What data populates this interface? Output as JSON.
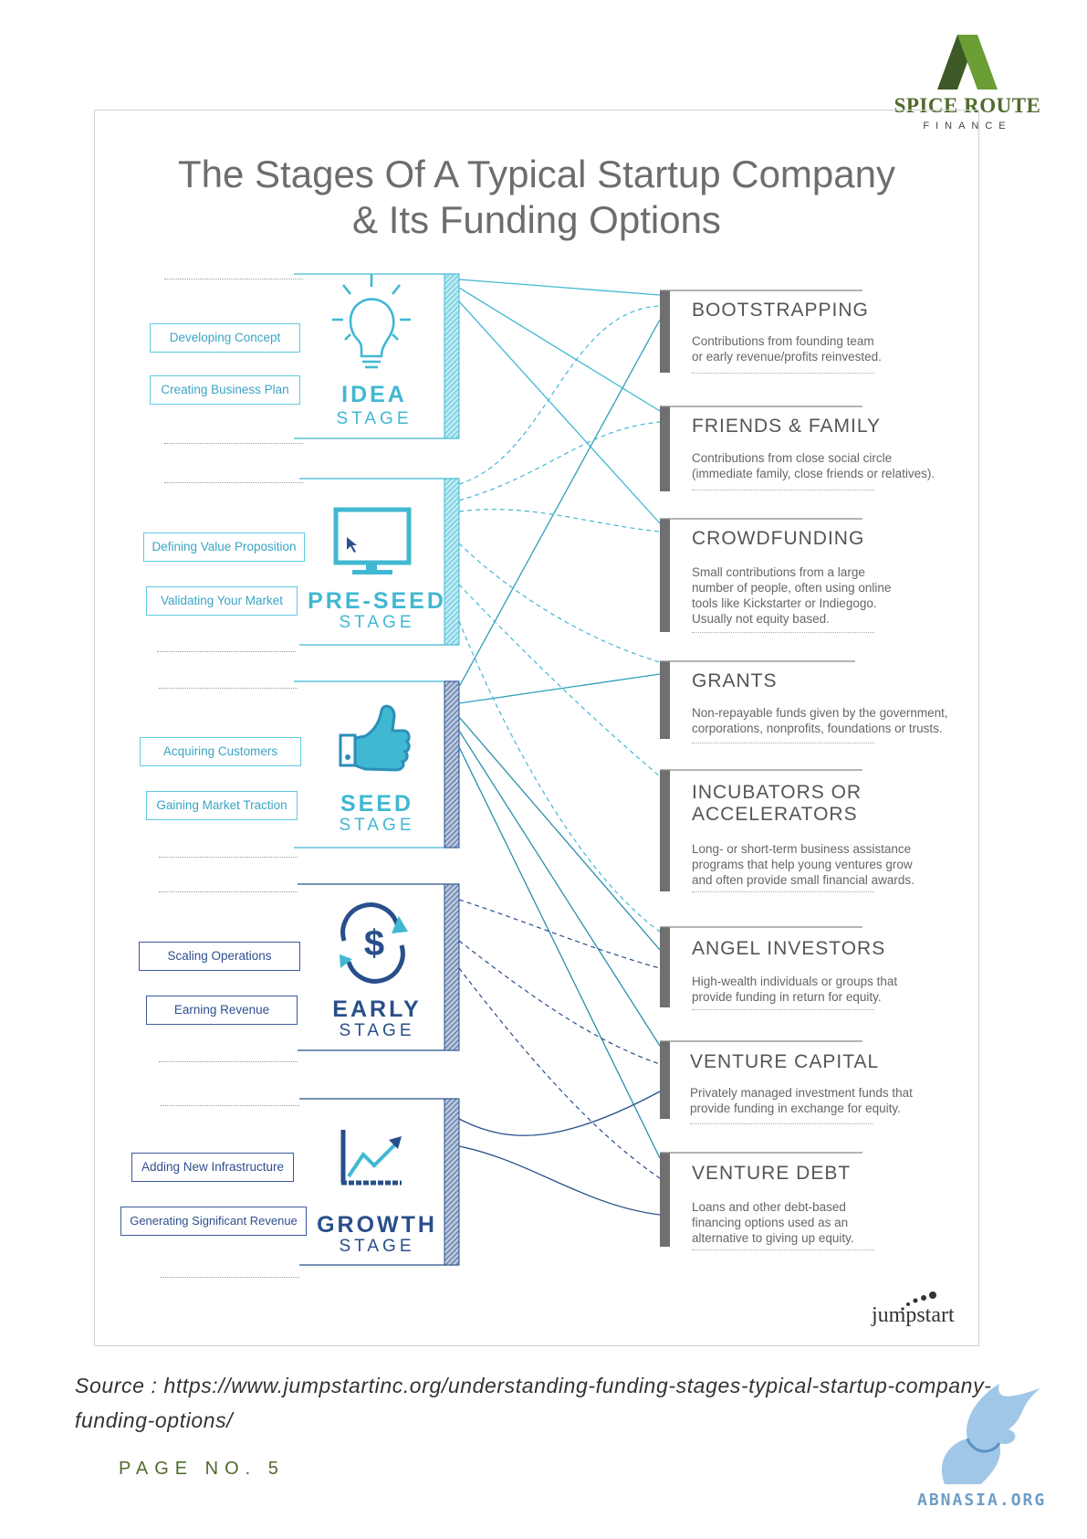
{
  "logo": {
    "name": "SPICE ROUTE",
    "sub": "FINANCE",
    "green": "#4f6b2d",
    "icon": "mountain-a-icon"
  },
  "title_line1": "The Stages Of A Typical Startup Company",
  "title_line2": "& Its Funding Options",
  "stages": [
    {
      "name": "IDEA",
      "sub": "STAGE",
      "icon": "lightbulb-icon",
      "activities": [
        "Developing Concept",
        "Creating Business Plan"
      ]
    },
    {
      "name": "PRE-SEED",
      "sub": "STAGE",
      "icon": "monitor-icon",
      "activities": [
        "Defining Value Proposition",
        "Validating Your Market"
      ]
    },
    {
      "name": "SEED",
      "sub": "STAGE",
      "icon": "thumbs-up-icon",
      "activities": [
        "Acquiring Customers",
        "Gaining Market Traction"
      ]
    },
    {
      "name": "EARLY",
      "sub": "STAGE",
      "icon": "dollar-cycle-icon",
      "activities": [
        "Scaling Operations",
        "Earning Revenue"
      ]
    },
    {
      "name": "GROWTH",
      "sub": "STAGE",
      "icon": "growth-chart-icon",
      "activities": [
        "Adding New Infrastructure",
        "Generating Significant Revenue"
      ]
    }
  ],
  "funding": [
    {
      "title": "BOOTSTRAPPING",
      "desc": "Contributions from founding team\nor early revenue/profits reinvested."
    },
    {
      "title": "FRIENDS & FAMILY",
      "desc": "Contributions from close social circle\n(immediate family, close friends or relatives)."
    },
    {
      "title": "CROWDFUNDING",
      "desc": "Small contributions from a large\nnumber of people, often using online\ntools like Kickstarter or Indiegogo.\nUsually not equity based."
    },
    {
      "title": "GRANTS",
      "desc": "Non-repayable funds given by the government,\ncorporations, nonprofits, foundations or trusts."
    },
    {
      "title": "INCUBATORS OR\nACCELERATORS",
      "desc": "Long- or short-term business assistance\nprograms that help young ventures grow\nand often provide small financial awards."
    },
    {
      "title": "ANGEL INVESTORS",
      "desc": "High-wealth individuals or groups that\nprovide funding in return for equity."
    },
    {
      "title": "VENTURE CAPITAL",
      "desc": "Privately managed investment funds that\nprovide funding in exchange for equity."
    },
    {
      "title": "VENTURE DEBT",
      "desc": "Loans and other debt-based\nfinancing options used as an\nalternative to giving up equity."
    }
  ],
  "brand": "jumpstart",
  "source_text": "Source  :  https://www.jumpstartinc.org/understanding-funding-stages-typical-startup-company-funding-options/",
  "page_no": "PAGE NO. 5",
  "watermark": "ABNASIA.ORG",
  "colors": {
    "teal": "#40b8d2",
    "navy": "#284f8a",
    "bar": "#6f6f6f"
  }
}
